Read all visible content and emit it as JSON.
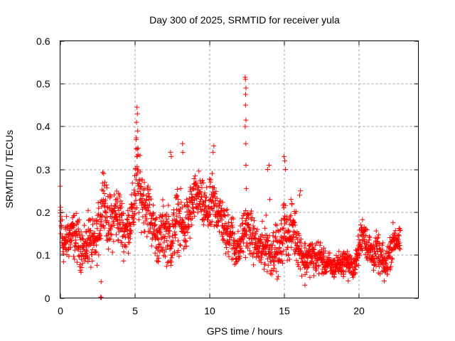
{
  "chart_data": {
    "type": "scatter",
    "title": "Day 300 of 2025, SRMTID for receiver yula",
    "xlabel": "GPS time / hours",
    "ylabel": "SRMTID / TECUs",
    "xlim": [
      0,
      24
    ],
    "ylim": [
      0,
      0.6
    ],
    "xticks": [
      "0",
      "5",
      "10",
      "15",
      "20"
    ],
    "xtick_values": [
      0,
      5,
      10,
      15,
      20
    ],
    "yticks": [
      "0",
      "0.1",
      "0.2",
      "0.3",
      "0.4",
      "0.5",
      "0.6"
    ],
    "ytick_values": [
      0,
      0.1,
      0.2,
      0.3,
      0.4,
      0.5,
      0.6
    ],
    "grid": true,
    "marker": "plus",
    "color": "#ff0000",
    "series": [
      {
        "name": "SRMTID",
        "trend": [
          [
            0.0,
            0.19,
            0.07
          ],
          [
            0.2,
            0.12,
            0.03
          ],
          [
            0.5,
            0.14,
            0.04
          ],
          [
            0.8,
            0.15,
            0.04
          ],
          [
            1.1,
            0.14,
            0.04
          ],
          [
            1.4,
            0.12,
            0.04
          ],
          [
            1.7,
            0.11,
            0.03
          ],
          [
            1.9,
            0.15,
            0.05
          ],
          [
            2.1,
            0.12,
            0.04
          ],
          [
            2.4,
            0.13,
            0.04
          ],
          [
            2.7,
            0.18,
            0.05
          ],
          [
            2.9,
            0.26,
            0.05
          ],
          [
            3.1,
            0.19,
            0.05
          ],
          [
            3.4,
            0.17,
            0.05
          ],
          [
            3.7,
            0.2,
            0.05
          ],
          [
            4.0,
            0.19,
            0.05
          ],
          [
            4.3,
            0.15,
            0.04
          ],
          [
            4.6,
            0.17,
            0.04
          ],
          [
            4.9,
            0.2,
            0.05
          ],
          [
            5.1,
            0.28,
            0.08
          ],
          [
            5.4,
            0.24,
            0.05
          ],
          [
            5.7,
            0.22,
            0.05
          ],
          [
            6.0,
            0.2,
            0.05
          ],
          [
            6.3,
            0.16,
            0.04
          ],
          [
            6.6,
            0.13,
            0.04
          ],
          [
            6.9,
            0.16,
            0.05
          ],
          [
            7.2,
            0.15,
            0.05
          ],
          [
            7.5,
            0.13,
            0.05
          ],
          [
            7.8,
            0.19,
            0.05
          ],
          [
            8.1,
            0.17,
            0.05
          ],
          [
            8.4,
            0.16,
            0.05
          ],
          [
            8.7,
            0.2,
            0.05
          ],
          [
            9.0,
            0.23,
            0.04
          ],
          [
            9.3,
            0.24,
            0.04
          ],
          [
            9.6,
            0.21,
            0.04
          ],
          [
            9.9,
            0.2,
            0.04
          ],
          [
            10.2,
            0.22,
            0.05
          ],
          [
            10.5,
            0.21,
            0.04
          ],
          [
            10.8,
            0.19,
            0.04
          ],
          [
            11.1,
            0.15,
            0.04
          ],
          [
            11.4,
            0.16,
            0.05
          ],
          [
            11.7,
            0.12,
            0.04
          ],
          [
            12.0,
            0.11,
            0.03
          ],
          [
            12.3,
            0.16,
            0.04
          ],
          [
            12.6,
            0.16,
            0.04
          ],
          [
            12.9,
            0.14,
            0.04
          ],
          [
            13.2,
            0.12,
            0.03
          ],
          [
            13.5,
            0.11,
            0.04
          ],
          [
            13.8,
            0.13,
            0.04
          ],
          [
            14.1,
            0.1,
            0.04
          ],
          [
            14.4,
            0.12,
            0.04
          ],
          [
            14.7,
            0.1,
            0.04
          ],
          [
            15.0,
            0.17,
            0.05
          ],
          [
            15.3,
            0.14,
            0.04
          ],
          [
            15.6,
            0.17,
            0.05
          ],
          [
            15.9,
            0.13,
            0.04
          ],
          [
            16.2,
            0.1,
            0.03
          ],
          [
            16.5,
            0.09,
            0.03
          ],
          [
            16.8,
            0.1,
            0.03
          ],
          [
            17.1,
            0.09,
            0.03
          ],
          [
            17.4,
            0.1,
            0.03
          ],
          [
            17.7,
            0.08,
            0.02
          ],
          [
            18.0,
            0.08,
            0.02
          ],
          [
            18.3,
            0.07,
            0.02
          ],
          [
            18.6,
            0.08,
            0.02
          ],
          [
            18.9,
            0.08,
            0.02
          ],
          [
            19.2,
            0.09,
            0.02
          ],
          [
            19.5,
            0.07,
            0.02
          ],
          [
            19.8,
            0.08,
            0.02
          ],
          [
            20.1,
            0.13,
            0.03
          ],
          [
            20.3,
            0.16,
            0.03
          ],
          [
            20.6,
            0.12,
            0.03
          ],
          [
            20.9,
            0.1,
            0.03
          ],
          [
            21.2,
            0.11,
            0.03
          ],
          [
            21.5,
            0.09,
            0.03
          ],
          [
            21.8,
            0.07,
            0.03
          ],
          [
            22.1,
            0.11,
            0.03
          ],
          [
            22.4,
            0.14,
            0.03
          ],
          [
            22.8,
            0.13,
            0.02
          ]
        ],
        "outliers": [
          [
            2.75,
            0.038
          ],
          [
            2.72,
            0.002
          ],
          [
            2.76,
            0.001
          ],
          [
            5.15,
            0.445
          ],
          [
            5.18,
            0.43
          ],
          [
            5.12,
            0.41
          ],
          [
            5.2,
            0.39
          ],
          [
            5.1,
            0.37
          ],
          [
            5.22,
            0.35
          ],
          [
            5.16,
            0.33
          ],
          [
            12.4,
            0.515
          ],
          [
            12.42,
            0.51
          ],
          [
            12.45,
            0.49
          ],
          [
            12.43,
            0.475
          ],
          [
            12.42,
            0.45
          ],
          [
            12.45,
            0.415
          ],
          [
            12.4,
            0.4
          ],
          [
            12.44,
            0.36
          ],
          [
            12.45,
            0.31
          ],
          [
            12.47,
            0.255
          ],
          [
            8.2,
            0.36
          ],
          [
            8.22,
            0.34
          ],
          [
            10.3,
            0.355
          ],
          [
            10.25,
            0.34
          ],
          [
            14.0,
            0.31
          ],
          [
            13.9,
            0.3
          ],
          [
            15.0,
            0.33
          ],
          [
            15.05,
            0.32
          ],
          [
            15.1,
            0.3
          ],
          [
            7.4,
            0.34
          ],
          [
            7.45,
            0.33
          ],
          [
            16.1,
            0.25
          ],
          [
            16.05,
            0.24
          ],
          [
            14.05,
            0.23
          ],
          [
            19.3,
            0.04
          ],
          [
            16.4,
            0.03
          ]
        ]
      }
    ]
  }
}
